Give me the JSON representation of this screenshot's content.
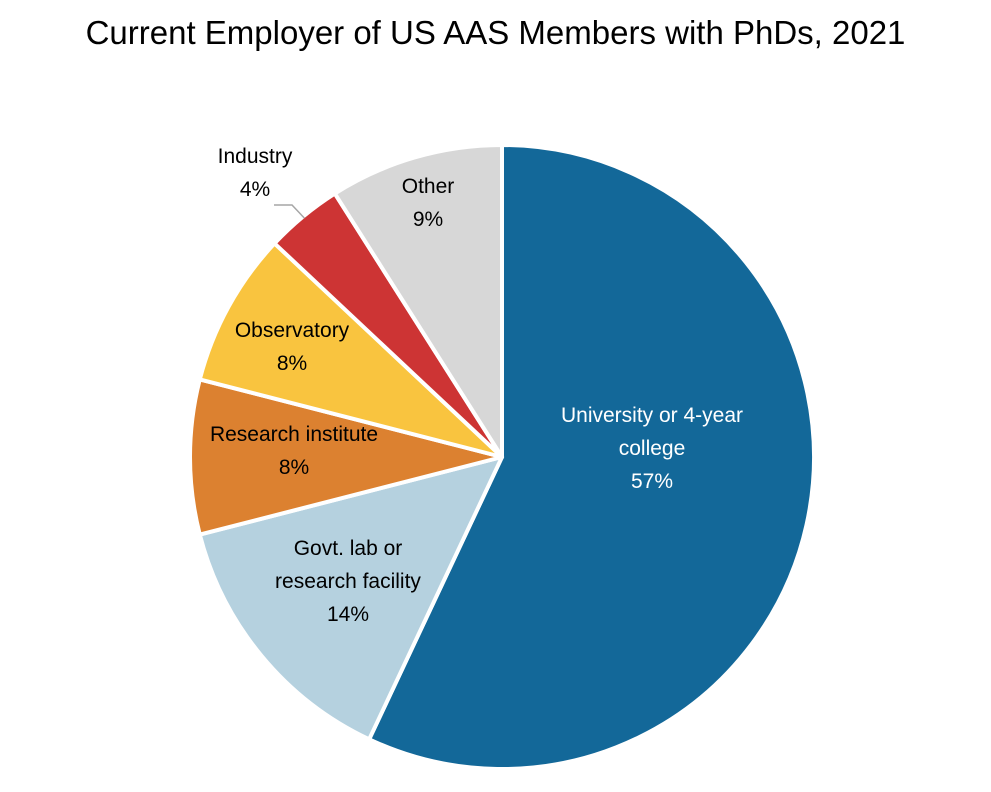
{
  "chart_data": {
    "type": "pie",
    "title": "Current Employer of US AAS Members with PhDs, 2021",
    "start_angle_deg": 0,
    "direction": "clockwise",
    "slices": [
      {
        "label_lines": [
          "University or 4-year",
          "college"
        ],
        "value_label": "57%",
        "value": 57,
        "color": "#136899",
        "text_color": "#ffffff"
      },
      {
        "label_lines": [
          "Govt. lab or",
          "research facility"
        ],
        "value_label": "14%",
        "value": 14,
        "color": "#b5d1df",
        "text_color": "#000000"
      },
      {
        "label_lines": [
          "Research institute"
        ],
        "value_label": "8%",
        "value": 8,
        "color": "#dc8130",
        "text_color": "#000000"
      },
      {
        "label_lines": [
          "Observatory"
        ],
        "value_label": "8%",
        "value": 8,
        "color": "#f9c43f",
        "text_color": "#000000"
      },
      {
        "label_lines": [
          "Industry"
        ],
        "value_label": "4%",
        "value": 4,
        "color": "#cd3434",
        "text_color": "#000000"
      },
      {
        "label_lines": [
          "Other"
        ],
        "value_label": "9%",
        "value": 9,
        "color": "#d7d7d7",
        "text_color": "#000000"
      }
    ]
  }
}
